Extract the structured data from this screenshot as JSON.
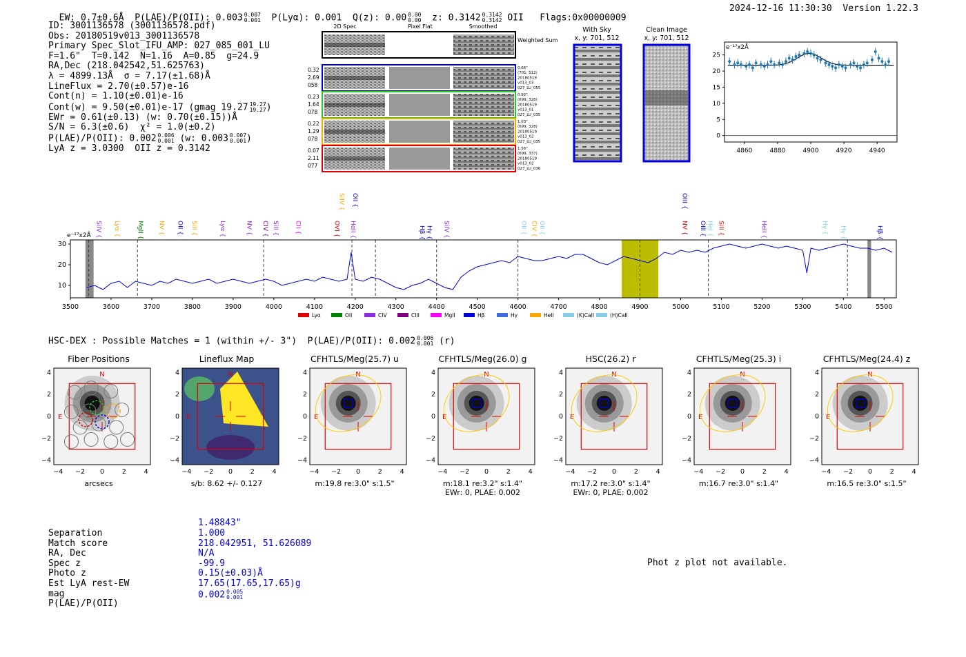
{
  "header": {
    "ew": "EW: 0.7±0.6Å",
    "plae_label": "P(LAE)/P(OII): 0.003",
    "plae_sup": "0.007",
    "plae_sub": "0.001",
    "plya": "P(Lyα): 0.001",
    "qz_label": "Q(z): 0.00",
    "qz_sup": "0.00",
    "qz_sub": "0.00",
    "z_label": "z: 0.3142",
    "z_sup": "0.3142",
    "z_sub": "0.3142",
    "z_line": "OII",
    "flags": "Flags:0x00000009",
    "datetime": "2024-12-16 11:30:30",
    "version": "Version 1.22.3"
  },
  "info": {
    "id": "ID: 3001136578 (3001136578.pdf)",
    "obs": "Obs: 20180519v013_3001136578",
    "slot": "Primary Spec_Slot_IFU_AMP: 027_085_001_LU",
    "fiber": "F=1.6\"  T=0.142  N=1.16  A=0.85  g=24.9",
    "radec": "RA,Dec (218.042542,51.625763)",
    "lambda": "λ = 4899.13Å  σ = 7.17(±1.68)Å",
    "lineflux": "LineFlux = 2.70(±0.57)e-16",
    "contn": "Cont(n) = 1.10(±0.01)e-16",
    "contw": "Cont(w) = 9.50(±0.01)e-17 (gmag 19.27",
    "contw_sup": "19.27",
    "contw_sub": "19.27",
    "ewr": "EWr = 0.61(±0.13) (w: 0.70(±0.15))Å",
    "sn": "S/N = 6.3(±0.6)  χ² = 1.0(±0.2)",
    "plae": "P(LAE)/P(OII): 0.002",
    "plae_sup": "0.006",
    "plae_sub": "0.001",
    "plae_w": "(w: 0.003",
    "plae_w_sup": "0.007",
    "plae_w_sub": "0.001",
    "lya_z": "LyA z = 3.0300  OII z = 0.3142"
  },
  "cutouts": {
    "col_2d": "2D Spec",
    "col_flat": "Pixel Flat",
    "col_smooth": "Smoothed",
    "weighted_sum": "Weighted Sum",
    "rows": [
      {
        "left": [
          "0.32",
          "2.69",
          "058"
        ],
        "right": [
          "0.66\"",
          "(701, 512)",
          "20180519",
          "v013_03",
          "027_LU_055"
        ],
        "color": "#0000dd"
      },
      {
        "left": [
          "0.23",
          "1.64",
          "078"
        ],
        "right": [
          "0.92\"",
          "(699, 328)",
          "20180519",
          "v013_01",
          "027_LU_035"
        ],
        "color": "#22cc22"
      },
      {
        "left": [
          "0.22",
          "1.29",
          "078"
        ],
        "right": [
          "1.03\"",
          "(699, 328)",
          "20180519",
          "v013_02",
          "027_LU_035"
        ],
        "color": "#ffa500"
      },
      {
        "left": [
          "0.07",
          "2.11",
          "077"
        ],
        "right": [
          "1.56\"",
          "(699, 337)",
          "20180519",
          "v013_02",
          "027_LU_036"
        ],
        "color": "#dd0000"
      }
    ],
    "with_sky": "With Sky",
    "with_sky_xy": "x, y: 701, 512",
    "clean": "Clean Image",
    "clean_xy": "x, y: 701, 512"
  },
  "chart_data": [
    {
      "type": "scatter",
      "title": "",
      "ylabel": "e⁻¹⁷x2Å",
      "xlim": [
        4848,
        4952
      ],
      "ylim": [
        -2,
        29
      ],
      "xticks": [
        4860,
        4880,
        4900,
        4920,
        4940
      ],
      "yticks": [
        0,
        5,
        10,
        15,
        20,
        25
      ],
      "color": "#1f77b4",
      "points": [
        [
          4851,
          23
        ],
        [
          4854,
          22
        ],
        [
          4856,
          22.5
        ],
        [
          4858,
          22
        ],
        [
          4861,
          21.5
        ],
        [
          4863,
          22
        ],
        [
          4865,
          21
        ],
        [
          4867,
          22.5
        ],
        [
          4870,
          22
        ],
        [
          4872,
          21.5
        ],
        [
          4874,
          22
        ],
        [
          4876,
          23
        ],
        [
          4878,
          22
        ],
        [
          4881,
          22.5
        ],
        [
          4883,
          22
        ],
        [
          4885,
          23
        ],
        [
          4887,
          24
        ],
        [
          4889,
          23.5
        ],
        [
          4891,
          24.5
        ],
        [
          4893,
          25
        ],
        [
          4896,
          25.5
        ],
        [
          4898,
          26
        ],
        [
          4900,
          25.5
        ],
        [
          4902,
          25
        ],
        [
          4904,
          24
        ],
        [
          4906,
          23.5
        ],
        [
          4909,
          22.5
        ],
        [
          4911,
          22
        ],
        [
          4913,
          21.5
        ],
        [
          4915,
          21
        ],
        [
          4917,
          22
        ],
        [
          4919,
          21.5
        ],
        [
          4921,
          21
        ],
        [
          4924,
          22
        ],
        [
          4926,
          22.5
        ],
        [
          4928,
          21.5
        ],
        [
          4930,
          21
        ],
        [
          4932,
          22
        ],
        [
          4934,
          22.5
        ],
        [
          4937,
          23.5
        ],
        [
          4939,
          26
        ],
        [
          4941,
          24
        ],
        [
          4943,
          23
        ],
        [
          4945,
          22
        ],
        [
          4947,
          23
        ]
      ],
      "fit": {
        "continuum": 21.8,
        "amplitude": 3.7,
        "center": 4899.1,
        "sigma": 7.2
      }
    },
    {
      "type": "line",
      "ylabel": "e⁻¹⁷x2Å",
      "xlim": [
        3500,
        5530
      ],
      "ylim": [
        4,
        32
      ],
      "xticks": [
        3500,
        3600,
        3700,
        3800,
        3900,
        4000,
        4100,
        4200,
        4300,
        4400,
        4500,
        4600,
        4700,
        4800,
        4900,
        5000,
        5100,
        5200,
        5300,
        5400,
        5500
      ],
      "yticks": [
        10,
        20,
        30
      ],
      "color": "#0000dd",
      "series_x": [
        3540,
        3560,
        3580,
        3600,
        3620,
        3640,
        3660,
        3680,
        3700,
        3720,
        3740,
        3760,
        3780,
        3800,
        3820,
        3840,
        3860,
        3880,
        3900,
        3920,
        3940,
        3960,
        3980,
        4000,
        4020,
        4040,
        4060,
        4080,
        4100,
        4120,
        4140,
        4160,
        4180,
        4190,
        4200,
        4220,
        4240,
        4260,
        4280,
        4300,
        4320,
        4340,
        4360,
        4380,
        4400,
        4420,
        4440,
        4460,
        4480,
        4500,
        4520,
        4540,
        4560,
        4580,
        4600,
        4620,
        4640,
        4660,
        4680,
        4700,
        4720,
        4740,
        4760,
        4780,
        4800,
        4820,
        4840,
        4860,
        4880,
        4900,
        4920,
        4940,
        4960,
        4980,
        5000,
        5020,
        5040,
        5060,
        5080,
        5100,
        5120,
        5140,
        5160,
        5180,
        5200,
        5220,
        5240,
        5260,
        5280,
        5300,
        5310,
        5320,
        5340,
        5360,
        5380,
        5400,
        5420,
        5440,
        5460,
        5480,
        5500,
        5520
      ],
      "series_y": [
        9,
        10,
        8,
        11,
        12,
        9,
        12,
        11,
        10,
        12,
        11,
        13,
        12,
        11,
        12,
        13,
        11,
        12,
        13,
        12,
        11,
        12,
        13,
        12,
        10,
        11,
        12,
        13,
        12,
        14,
        13,
        12,
        13,
        26,
        13,
        12,
        14,
        13,
        11,
        9,
        8,
        10,
        11,
        13,
        11,
        9,
        8,
        14,
        17,
        19,
        20,
        21,
        22,
        21,
        24,
        23,
        22,
        22,
        23,
        24,
        23,
        25,
        25,
        23,
        21,
        20,
        22,
        24,
        23,
        22,
        21,
        23,
        26,
        25,
        27,
        26,
        27,
        26,
        28,
        29,
        30,
        29,
        28,
        29,
        30,
        29,
        28,
        29,
        28,
        27,
        16,
        28,
        27,
        28,
        29,
        30,
        29,
        28,
        28,
        27,
        28,
        26
      ],
      "dashed_lines": [
        3545,
        3665,
        3975,
        4192,
        4250,
        4400,
        4600,
        4900,
        5068,
        5410
      ],
      "shaded": [
        [
          3537,
          3557
        ],
        [
          4855,
          4945
        ],
        [
          5459,
          5468
        ]
      ],
      "lines": [
        {
          "label": "SiIV",
          "x": 3565,
          "color": "#8a2be2",
          "tier": 2
        },
        {
          "label": "Lyα",
          "x": 3610,
          "color": "#ffa500",
          "tier": 2
        },
        {
          "label": "MgII",
          "x": 3668,
          "color": "#008000",
          "tier": 2
        },
        {
          "label": "NV",
          "x": 3720,
          "color": "#ffa500",
          "tier": 2
        },
        {
          "label": "OII",
          "x": 3765,
          "color": "#0000dd",
          "tier": 2
        },
        {
          "label": "SiII",
          "x": 3800,
          "color": "#ffa500",
          "tier": 2
        },
        {
          "label": "Lyα",
          "x": 3870,
          "color": "#8a2be2",
          "tier": 2
        },
        {
          "label": "NV",
          "x": 3935,
          "color": "#8a2be2",
          "tier": 2
        },
        {
          "label": "CIV",
          "x": 3975,
          "color": "#800080",
          "tier": 2
        },
        {
          "label": "SiII",
          "x": 4000,
          "color": "#8a2be2",
          "tier": 2
        },
        {
          "label": "CII",
          "x": 4055,
          "color": "#ff00ff",
          "tier": 2
        },
        {
          "label": "OVI",
          "x": 4150,
          "color": "#dd0000",
          "tier": 2
        },
        {
          "label": "HeII",
          "x": 4190,
          "color": "#8a2be2",
          "tier": 2
        },
        {
          "label": "SiIV",
          "x": 4162,
          "color": "#ffa500",
          "tier": 1
        },
        {
          "label": "OII",
          "x": 4195,
          "color": "#0000dd",
          "tier": 1
        },
        {
          "label": "Hβ",
          "x": 4360,
          "color": "#0000dd",
          "tier": 3
        },
        {
          "label": "Hγ",
          "x": 4378,
          "color": "#0000dd",
          "tier": 3
        },
        {
          "label": "SiIV",
          "x": 4420,
          "color": "#8a2be2",
          "tier": 2
        },
        {
          "label": "OII",
          "x": 4610,
          "color": "#87ceeb",
          "tier": 2
        },
        {
          "label": "CIV",
          "x": 4635,
          "color": "#ffa500",
          "tier": 2
        },
        {
          "label": "OII",
          "x": 4655,
          "color": "#87ceeb",
          "tier": 2
        },
        {
          "label": "OIII",
          "x": 5005,
          "color": "#0000dd",
          "tier": 1
        },
        {
          "label": "NV",
          "x": 5005,
          "color": "#dd0000",
          "tier": 2
        },
        {
          "label": "OIII",
          "x": 5050,
          "color": "#0000dd",
          "tier": 2
        },
        {
          "label": "HeI",
          "x": 5068,
          "color": "#87ceeb",
          "tier": 2
        },
        {
          "label": "SiII",
          "x": 5095,
          "color": "#dd0000",
          "tier": 2
        },
        {
          "label": "HeII",
          "x": 5200,
          "color": "#8a2be2",
          "tier": 2
        },
        {
          "label": "Hγ",
          "x": 5350,
          "color": "#87ceeb",
          "tier": 2
        },
        {
          "label": "Hγ",
          "x": 5395,
          "color": "#87ceeb",
          "tier": 3
        },
        {
          "label": "Hβ",
          "x": 5485,
          "color": "#0000dd",
          "tier": 3
        }
      ],
      "legend": [
        {
          "label": "Lyα",
          "color": "#dd0000"
        },
        {
          "label": "OII",
          "color": "#008000"
        },
        {
          "label": "CIV",
          "color": "#8a2be2"
        },
        {
          "label": "CIII",
          "color": "#800080"
        },
        {
          "label": "MgII",
          "color": "#ff00ff"
        },
        {
          "label": "Hβ",
          "color": "#0000dd"
        },
        {
          "label": "Hγ",
          "color": "#4169e1"
        },
        {
          "label": "HeII",
          "color": "#ffa500"
        },
        {
          "label": "(K)CaII",
          "color": "#87ceeb"
        },
        {
          "label": "(H)CaII",
          "color": "#87ceeb"
        }
      ]
    }
  ],
  "hsc": {
    "header": "HSC-DEX : Possible Matches = 1 (within +/- 3\")  P(LAE)/P(OII): 0.002",
    "plae_sup": "0.006",
    "plae_sub": "0.001",
    "band": "(r)",
    "ticks": [
      "−4",
      "−2",
      "0",
      "2",
      "4"
    ],
    "north": "N",
    "east": "E",
    "panels": [
      {
        "title": "Fiber Positions",
        "cap1": "arcsecs",
        "cap2": ""
      },
      {
        "title": "Lineflux Map",
        "cap1": "s/b: 8.62 +/- 0.127",
        "cap2": ""
      },
      {
        "title": "CFHTLS/Meg(25.7) u",
        "cap1": "m:19.8   re:3.0\"   s:1.5\"",
        "cap2": ""
      },
      {
        "title": "CFHTLS/Meg(26.0) g",
        "cap1": "m:18.1   re:3.2\"   s:1.4\"",
        "cap2": "EWr: 0, PLAE: 0.002"
      },
      {
        "title": "HSC(26.2) r",
        "cap1": "m:17.2   re:3.0\"   s:1.4\"",
        "cap2": "EWr: 0, PLAE: 0.002"
      },
      {
        "title": "CFHTLS/Meg(25.3) i",
        "cap1": "m:16.7   re:3.0\"   s:1.4\"",
        "cap2": ""
      },
      {
        "title": "CFHTLS/Meg(24.4) z",
        "cap1": "m:16.5   re:3.0\"   s:1.5\"",
        "cap2": ""
      }
    ]
  },
  "match": {
    "labels": [
      "Separation",
      "Match score",
      "RA, Dec",
      "Spec z",
      "Photo z",
      "Est LyA rest-EW",
      "mag",
      "P(LAE)/P(OII)"
    ],
    "values": [
      "1.48843\"",
      "1.000",
      "218.042951, 51.626089",
      "N/A",
      "-99.9",
      "0.15(±0.03)Å",
      "17.65(17.65,17.65)g",
      "0.002"
    ],
    "plae_sup": "0.005",
    "plae_sub": "0.001",
    "photz_note": "Phot z plot not available."
  }
}
